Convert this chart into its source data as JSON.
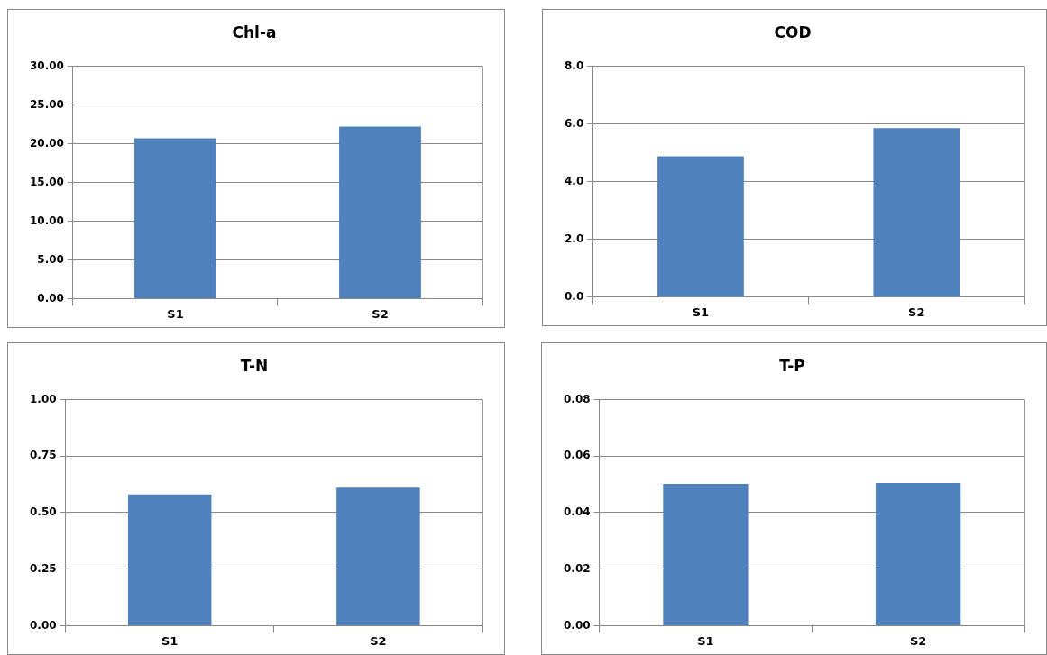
{
  "chart_data": [
    {
      "type": "bar",
      "title": "Chl-a",
      "categories": [
        "S1",
        "S2"
      ],
      "values": [
        20.7,
        22.2
      ],
      "color": "#4f81bd",
      "ylim": [
        0,
        30
      ],
      "yticks": [
        {
          "value": 0,
          "label": "0.00"
        },
        {
          "value": 5,
          "label": "5.00"
        },
        {
          "value": 10,
          "label": "10.00"
        },
        {
          "value": 15,
          "label": "15.00"
        },
        {
          "value": 20,
          "label": "20.00"
        },
        {
          "value": 25,
          "label": "25.00"
        },
        {
          "value": 30,
          "label": "30.00"
        }
      ],
      "grid": "y"
    },
    {
      "type": "bar",
      "title": "COD",
      "categories": [
        "S1",
        "S2"
      ],
      "values": [
        4.87,
        5.85
      ],
      "color": "#4f81bd",
      "ylim": [
        0,
        8
      ],
      "yticks": [
        {
          "value": 0,
          "label": "0.0"
        },
        {
          "value": 2,
          "label": "2.0"
        },
        {
          "value": 4,
          "label": "4.0"
        },
        {
          "value": 6,
          "label": "6.0"
        },
        {
          "value": 8,
          "label": "8.0"
        }
      ],
      "grid": "y"
    },
    {
      "type": "bar",
      "title": "T-N",
      "categories": [
        "S1",
        "S2"
      ],
      "values": [
        0.58,
        0.61
      ],
      "color": "#4f81bd",
      "ylim": [
        0,
        1
      ],
      "yticks": [
        {
          "value": 0,
          "label": "0.00"
        },
        0.25,
        {
          "value": 0.5,
          "label": "0.50"
        },
        0.75,
        {
          "value": 1,
          "label": "1.00"
        }
      ],
      "grid": "y"
    },
    {
      "type": "bar",
      "title": "T-P",
      "categories": [
        "S1",
        "S2"
      ],
      "values": [
        0.0502,
        0.0505
      ],
      "color": "#4f81bd",
      "ylim": [
        0,
        0.08
      ],
      "yticks": [
        {
          "value": 0,
          "label": "0.00"
        },
        {
          "value": 0.02,
          "label": "0.02"
        },
        {
          "value": 0.04,
          "label": "0.04"
        },
        {
          "value": 0.06,
          "label": "0.06"
        },
        {
          "value": 0.08,
          "label": "0.08"
        }
      ],
      "grid": "y"
    }
  ]
}
